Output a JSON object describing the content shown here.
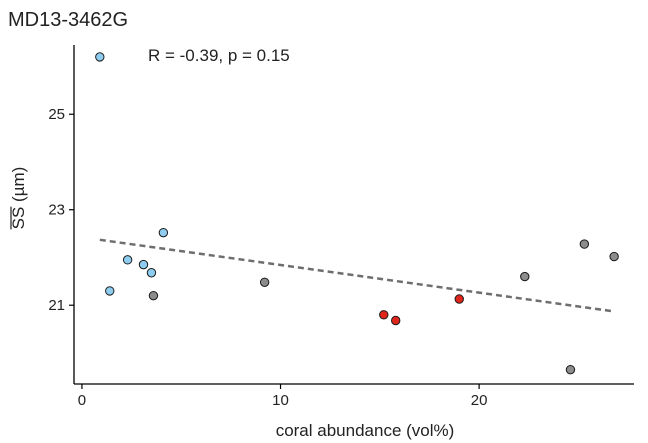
{
  "chart_data": {
    "type": "scatter",
    "title": "MD13-3462G",
    "annotation": "R = -0.39, p = 0.15",
    "xlabel": "coral abundance (vol%)",
    "ylabel": "SS (µm)",
    "ylabel_overline": true,
    "xlim": [
      -0.4,
      27.8
    ],
    "ylim": [
      19.35,
      26.45
    ],
    "xticks": [
      0,
      10,
      20
    ],
    "yticks": [
      21,
      23,
      25
    ],
    "grid": false,
    "colors": {
      "blue": "#8ecdf0",
      "grey": "#8c8c8c",
      "red": "#e0261c",
      "trend": "#6e6e6e"
    },
    "points": [
      {
        "x": 0.9,
        "y": 26.2,
        "color": "blue"
      },
      {
        "x": 1.4,
        "y": 21.3,
        "color": "blue"
      },
      {
        "x": 2.3,
        "y": 21.95,
        "color": "blue"
      },
      {
        "x": 3.1,
        "y": 21.85,
        "color": "blue"
      },
      {
        "x": 3.5,
        "y": 21.68,
        "color": "blue"
      },
      {
        "x": 4.1,
        "y": 22.52,
        "color": "blue"
      },
      {
        "x": 3.6,
        "y": 21.2,
        "color": "grey"
      },
      {
        "x": 9.2,
        "y": 21.48,
        "color": "grey"
      },
      {
        "x": 22.3,
        "y": 21.6,
        "color": "grey"
      },
      {
        "x": 25.3,
        "y": 22.28,
        "color": "grey"
      },
      {
        "x": 26.8,
        "y": 22.02,
        "color": "grey"
      },
      {
        "x": 24.6,
        "y": 19.65,
        "color": "grey"
      },
      {
        "x": 15.2,
        "y": 20.8,
        "color": "red"
      },
      {
        "x": 15.8,
        "y": 20.68,
        "color": "red"
      },
      {
        "x": 19.0,
        "y": 21.13,
        "color": "red"
      }
    ],
    "trendline": {
      "style": "dashed",
      "x": [
        0.9,
        26.8
      ],
      "y": [
        22.37,
        20.87
      ]
    }
  }
}
